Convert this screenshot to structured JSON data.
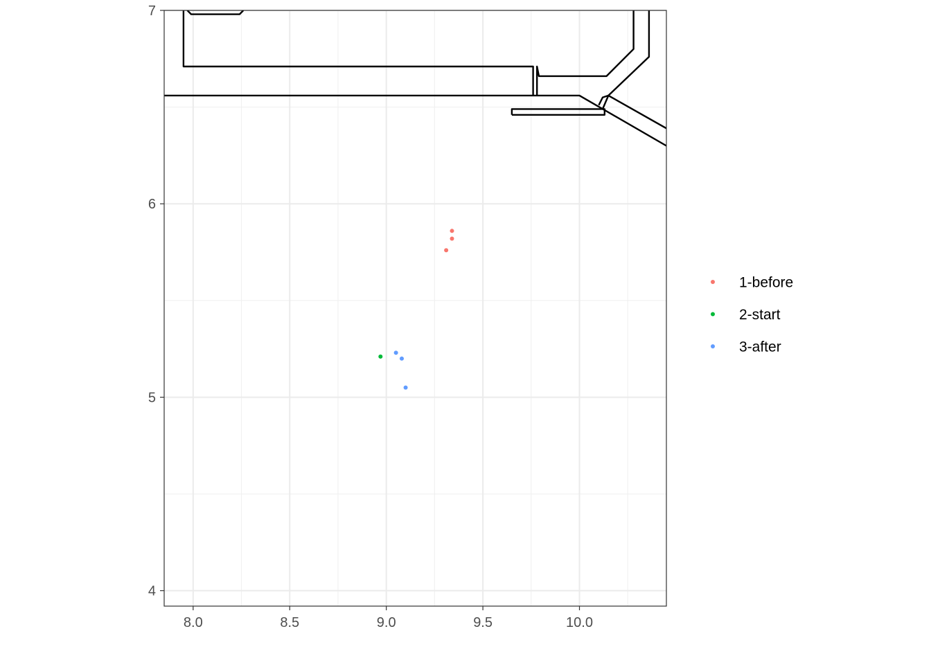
{
  "chart_data": {
    "type": "scatter",
    "title": "",
    "xlabel": "",
    "ylabel": "",
    "xlim": [
      7.85,
      10.45
    ],
    "ylim": [
      3.92,
      7.0
    ],
    "x_ticks": [
      {
        "value": 8.0,
        "label": "8.0"
      },
      {
        "value": 8.5,
        "label": "8.5"
      },
      {
        "value": 9.0,
        "label": "9.0"
      },
      {
        "value": 9.5,
        "label": "9.5"
      },
      {
        "value": 10.0,
        "label": "10.0"
      }
    ],
    "y_ticks": [
      {
        "value": 4,
        "label": "4"
      },
      {
        "value": 5,
        "label": "5"
      },
      {
        "value": 6,
        "label": "6"
      },
      {
        "value": 7,
        "label": "7"
      }
    ],
    "grid": true,
    "legend_position": "right",
    "series": [
      {
        "name": "1-before",
        "color": "#F8766D",
        "points": [
          {
            "x": 9.34,
            "y": 5.86
          },
          {
            "x": 9.34,
            "y": 5.82
          },
          {
            "x": 9.31,
            "y": 5.76
          }
        ]
      },
      {
        "name": "2-start",
        "color": "#00BA38",
        "points": [
          {
            "x": 8.97,
            "y": 5.21
          }
        ]
      },
      {
        "name": "3-after",
        "color": "#619CFF",
        "points": [
          {
            "x": 9.05,
            "y": 5.23
          },
          {
            "x": 9.08,
            "y": 5.2
          },
          {
            "x": 9.1,
            "y": 5.05
          }
        ]
      }
    ],
    "outline_paths": [
      [
        [
          7.95,
          7.0
        ],
        [
          7.95,
          6.71
        ],
        [
          9.76,
          6.71
        ],
        [
          9.76,
          6.56
        ]
      ],
      [
        [
          7.97,
          7.0
        ],
        [
          7.99,
          6.98
        ],
        [
          8.24,
          6.98
        ],
        [
          8.26,
          7.0
        ]
      ],
      [
        [
          7.85,
          6.56
        ],
        [
          10.0,
          6.56
        ],
        [
          10.45,
          6.3
        ]
      ],
      [
        [
          9.78,
          6.56
        ],
        [
          9.78,
          6.71
        ],
        [
          9.79,
          6.66
        ],
        [
          10.14,
          6.66
        ],
        [
          10.28,
          6.8
        ],
        [
          10.28,
          7.0
        ]
      ],
      [
        [
          10.36,
          7.0
        ],
        [
          10.36,
          6.76
        ],
        [
          10.15,
          6.56
        ],
        [
          10.45,
          6.39
        ]
      ],
      [
        [
          10.15,
          6.56
        ],
        [
          10.12,
          6.49
        ]
      ],
      [
        [
          10.1,
          6.51
        ],
        [
          10.12,
          6.55
        ],
        [
          10.15,
          6.56
        ]
      ],
      [
        [
          9.65,
          6.46
        ],
        [
          10.13,
          6.46
        ],
        [
          10.13,
          6.49
        ],
        [
          9.65,
          6.49
        ],
        [
          9.65,
          6.46
        ]
      ]
    ]
  }
}
